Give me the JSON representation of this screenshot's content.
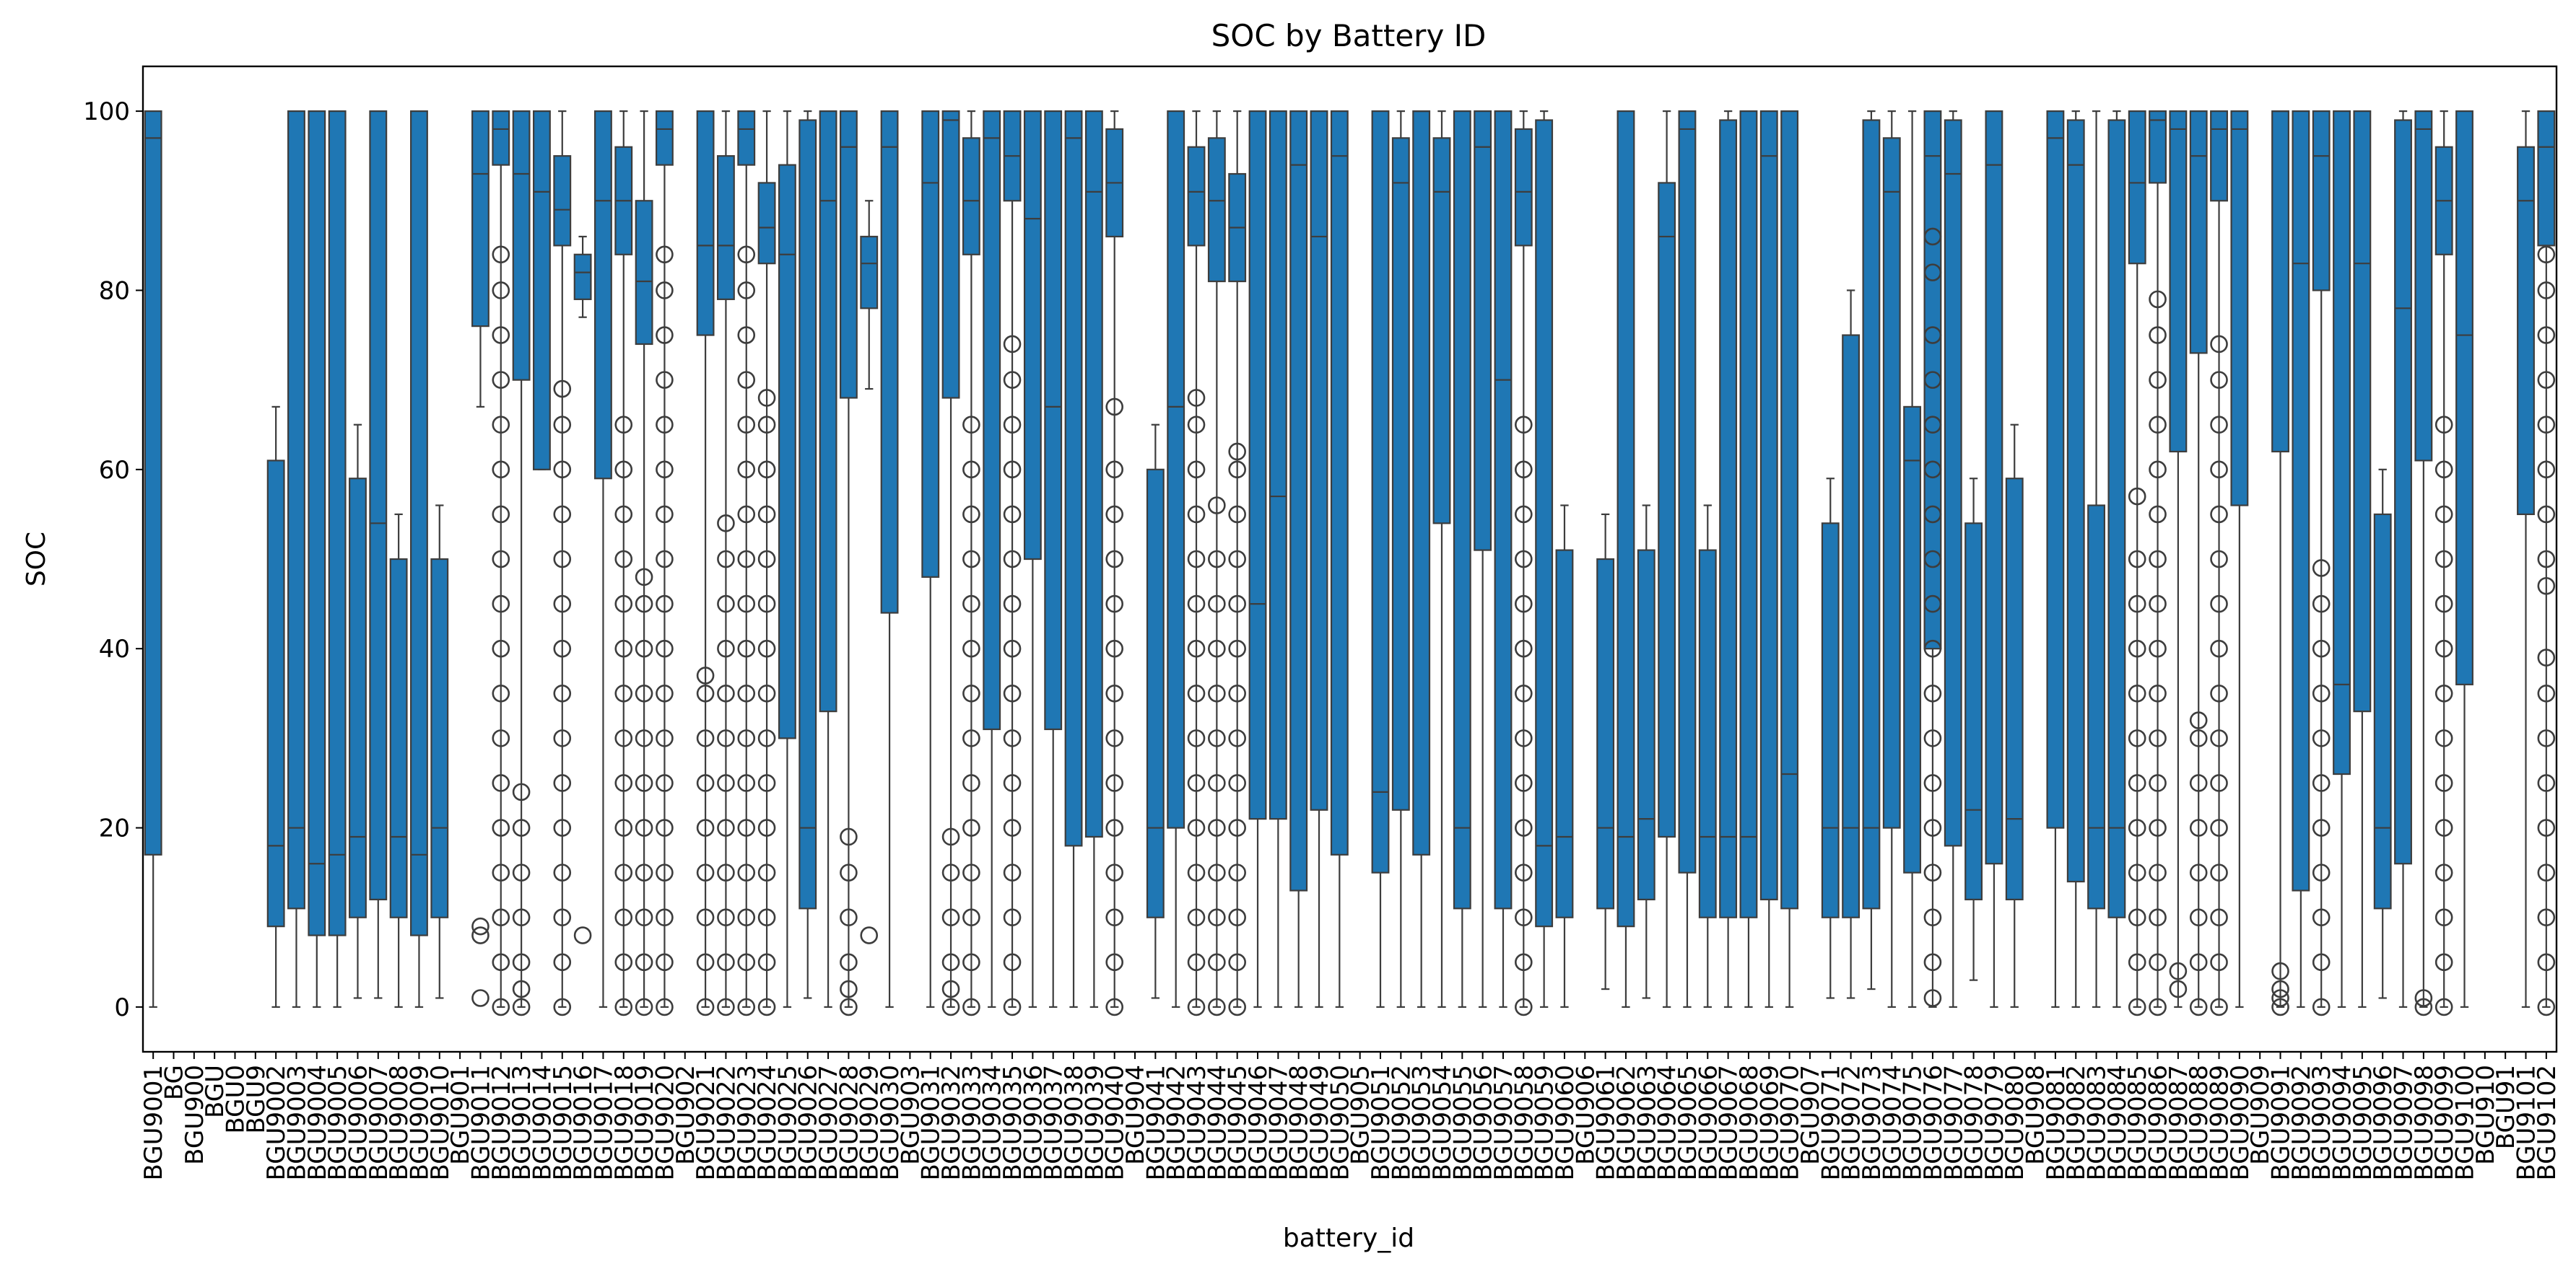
{
  "chart_data": {
    "type": "box",
    "title": "SOC by Battery ID",
    "xlabel": "battery_id",
    "ylabel": "SOC",
    "ylim": [
      -5,
      105
    ],
    "yticks": [
      0,
      20,
      40,
      60,
      80,
      100
    ],
    "grid": false,
    "legend": "none",
    "box_color": "#1f77b4",
    "line_color": "#3d3d3d",
    "categories": [
      "BGU9001",
      "BG",
      "BGU900",
      "BGU",
      "BGU0",
      "BGU9",
      "BGU9002",
      "BGU9003",
      "BGU9004",
      "BGU9005",
      "BGU9006",
      "BGU9007",
      "BGU9008",
      "BGU9009",
      "BGU9010",
      "BGU901",
      "BGU9011",
      "BGU9012",
      "BGU9013",
      "BGU9014",
      "BGU9015",
      "BGU9016",
      "BGU9017",
      "BGU9018",
      "BGU9019",
      "BGU9020",
      "BGU902",
      "BGU9021",
      "BGU9022",
      "BGU9023",
      "BGU9024",
      "BGU9025",
      "BGU9026",
      "BGU9027",
      "BGU9028",
      "BGU9029",
      "BGU9030",
      "BGU903",
      "BGU9031",
      "BGU9032",
      "BGU9033",
      "BGU9034",
      "BGU9035",
      "BGU9036",
      "BGU9037",
      "BGU9038",
      "BGU9039",
      "BGU9040",
      "BGU904",
      "BGU9041",
      "BGU9042",
      "BGU9043",
      "BGU9044",
      "BGU9045",
      "BGU9046",
      "BGU9047",
      "BGU9048",
      "BGU9049",
      "BGU9050",
      "BGU905",
      "BGU9051",
      "BGU9052",
      "BGU9053",
      "BGU9054",
      "BGU9055",
      "BGU9056",
      "BGU9057",
      "BGU9058",
      "BGU9059",
      "BGU9060",
      "BGU906",
      "BGU9061",
      "BGU9062",
      "BGU9063",
      "BGU9064",
      "BGU9065",
      "BGU9066",
      "BGU9067",
      "BGU9068",
      "BGU9069",
      "BGU9070",
      "BGU907",
      "BGU9071",
      "BGU9072",
      "BGU9073",
      "BGU9074",
      "BGU9075",
      "BGU9076",
      "BGU9077",
      "BGU9078",
      "BGU9079",
      "BGU9080",
      "BGU908",
      "BGU9081",
      "BGU9082",
      "BGU9083",
      "BGU9084",
      "BGU9085",
      "BGU9086",
      "BGU9087",
      "BGU9088",
      "BGU9089",
      "BGU9090",
      "BGU909",
      "BGU9091",
      "BGU9092",
      "BGU9093",
      "BGU9094",
      "BGU9095",
      "BGU9096",
      "BGU9097",
      "BGU9098",
      "BGU9099",
      "BGU9100",
      "BGU910",
      "BGU91",
      "BGU9101",
      "BGU9102"
    ],
    "tick_labels": [
      "BGU9001",
      "BG",
      "BGU900",
      "BGU",
      "BGU0",
      "BGU9",
      "BGU9002",
      "BGU9003",
      "BGU9004",
      "BGU9005",
      "BGU9006",
      "BGU9007",
      "BGU9008",
      "BGU9009",
      "BGU9010",
      "BGU901",
      "BGU9011",
      "BGU9012",
      "BGU9013",
      "BGU9014",
      "BGU9015",
      "BGU9016",
      "BGU9017",
      "BGU9018",
      "BGU9019",
      "BGU9020",
      "BGU902",
      "BGU9021",
      "BGU9022",
      "BGU9023",
      "BGU9024",
      "BGU9025",
      "BGU9026",
      "BGU9027",
      "BGU9028",
      "BGU9029",
      "BGU9030",
      "BGU903",
      "BGU9031",
      "BGU9032",
      "BGU9033",
      "BGU9034",
      "BGU9035",
      "BGU9036",
      "BGU9037",
      "BGU9038",
      "BGU9039",
      "BGU9040",
      "BGU904",
      "BGU9041",
      "BGU9042",
      "BGU9043",
      "BGU9044",
      "BGU9045",
      "BGU9046",
      "BGU9047",
      "BGU9048",
      "BGU9049",
      "BGU9050",
      "BGU905",
      "BGU9051",
      "BGU9052",
      "BGU9053",
      "BGU9054",
      "BGU9055",
      "BGU9056",
      "BGU9057",
      "BGU9058",
      "BGU9059",
      "BGU9060",
      "BGU906",
      "BGU9061",
      "BGU9062",
      "BGU9063",
      "BGU9064",
      "BGU9065",
      "BGU9066",
      "BGU9067",
      "BGU9068",
      "BGU9069",
      "BGU9070",
      "BGU907",
      "BGU9071",
      "BGU9072",
      "BGU9073",
      "BGU9074",
      "BGU9075",
      "BGU9076",
      "BGU9077",
      "BGU9078",
      "BGU9079",
      "BGU9080",
      "BGU908",
      "BGU9081",
      "BGU9082",
      "BGU9083",
      "BGU9084",
      "BGU9085",
      "BGU9086",
      "BGU9087",
      "BGU9088",
      "BGU9089",
      "BGU9090",
      "BGU909",
      "BGU9091",
      "BGU9092",
      "BGU9093",
      "BGU9094",
      "BGU9095",
      "BGU9096",
      "BGU9097",
      "BGU9098",
      "BGU9099",
      "BGU9100",
      "BGU910",
      "BGU91",
      "BGU9101",
      "BGU9102"
    ],
    "boxes": [
      [
        0,
        17,
        97,
        100,
        100,
        []
      ],
      null,
      null,
      null,
      null,
      null,
      [
        0,
        9,
        18,
        61,
        67,
        []
      ],
      [
        0,
        11,
        20,
        100,
        100,
        []
      ],
      [
        0,
        8,
        16,
        100,
        100,
        []
      ],
      [
        0,
        8,
        17,
        100,
        100,
        []
      ],
      [
        1,
        10,
        19,
        59,
        65,
        []
      ],
      [
        1,
        12,
        54,
        100,
        100,
        []
      ],
      [
        0,
        10,
        19,
        50,
        55,
        []
      ],
      [
        0,
        8,
        17,
        100,
        100,
        []
      ],
      [
        1,
        10,
        20,
        50,
        56,
        []
      ],
      null,
      [
        67,
        76,
        93,
        100,
        100,
        [
          9,
          8,
          1
        ]
      ],
      [
        0,
        94,
        98,
        100,
        100,
        [
          84,
          80,
          75,
          70,
          65,
          60,
          55,
          50,
          45,
          40,
          35,
          30,
          25,
          20,
          15,
          10,
          5,
          0
        ]
      ],
      [
        0,
        70,
        93,
        100,
        100,
        [
          24,
          20,
          15,
          10,
          5,
          2,
          0
        ]
      ],
      [
        60,
        60,
        91,
        100,
        100,
        []
      ],
      [
        0,
        85,
        89,
        95,
        100,
        [
          69,
          65,
          60,
          55,
          50,
          45,
          40,
          35,
          30,
          25,
          20,
          15,
          10,
          5,
          0
        ]
      ],
      [
        77,
        79,
        82,
        84,
        86,
        [
          8
        ]
      ],
      [
        0,
        59,
        90,
        100,
        100,
        []
      ],
      [
        0,
        84,
        90,
        96,
        100,
        [
          65,
          60,
          55,
          50,
          45,
          40,
          35,
          30,
          25,
          20,
          15,
          10,
          5,
          0
        ]
      ],
      [
        0,
        74,
        81,
        90,
        100,
        [
          48,
          45,
          40,
          35,
          30,
          25,
          20,
          15,
          10,
          5,
          0
        ]
      ],
      [
        0,
        94,
        98,
        100,
        100,
        [
          84,
          80,
          75,
          70,
          65,
          60,
          55,
          50,
          45,
          40,
          35,
          30,
          25,
          20,
          15,
          10,
          5,
          0
        ]
      ],
      null,
      [
        0,
        75,
        85,
        100,
        100,
        [
          37,
          35,
          30,
          25,
          20,
          15,
          10,
          5,
          0
        ]
      ],
      [
        0,
        79,
        85,
        95,
        100,
        [
          54,
          50,
          45,
          40,
          35,
          30,
          25,
          20,
          15,
          10,
          5,
          0
        ]
      ],
      [
        0,
        94,
        98,
        100,
        100,
        [
          84,
          80,
          75,
          70,
          65,
          60,
          55,
          50,
          45,
          40,
          35,
          30,
          25,
          20,
          15,
          10,
          5,
          0
        ]
      ],
      [
        0,
        83,
        87,
        92,
        100,
        [
          68,
          65,
          60,
          55,
          50,
          45,
          40,
          35,
          30,
          25,
          20,
          15,
          10,
          5,
          0
        ]
      ],
      [
        0,
        30,
        84,
        94,
        100,
        []
      ],
      [
        1,
        11,
        20,
        99,
        100,
        []
      ],
      [
        0,
        33,
        90,
        100,
        100,
        []
      ],
      [
        0,
        68,
        96,
        100,
        100,
        [
          19,
          15,
          10,
          5,
          2,
          0
        ]
      ],
      [
        69,
        78,
        83,
        86,
        90,
        [
          8
        ]
      ],
      [
        0,
        44,
        96,
        100,
        100,
        []
      ],
      null,
      [
        0,
        48,
        92,
        100,
        100,
        []
      ],
      [
        0,
        68,
        99,
        100,
        100,
        [
          19,
          15,
          10,
          5,
          2,
          0
        ]
      ],
      [
        0,
        84,
        90,
        97,
        100,
        [
          65,
          60,
          55,
          50,
          45,
          40,
          35,
          30,
          25,
          20,
          15,
          10,
          5,
          0
        ]
      ],
      [
        0,
        31,
        97,
        100,
        100,
        []
      ],
      [
        0,
        90,
        95,
        100,
        100,
        [
          74,
          70,
          65,
          60,
          55,
          50,
          45,
          40,
          35,
          30,
          25,
          20,
          15,
          10,
          5,
          0
        ]
      ],
      [
        0,
        50,
        88,
        100,
        100,
        []
      ],
      [
        0,
        31,
        67,
        100,
        100,
        []
      ],
      [
        0,
        18,
        97,
        100,
        100,
        []
      ],
      [
        0,
        19,
        91,
        100,
        100,
        []
      ],
      [
        0,
        86,
        92,
        98,
        100,
        [
          67,
          60,
          55,
          50,
          45,
          40,
          35,
          30,
          25,
          20,
          15,
          10,
          5,
          0
        ]
      ],
      null,
      [
        1,
        10,
        20,
        60,
        65,
        []
      ],
      [
        0,
        20,
        67,
        100,
        100,
        []
      ],
      [
        0,
        85,
        91,
        96,
        100,
        [
          68,
          65,
          60,
          55,
          50,
          45,
          40,
          35,
          30,
          25,
          20,
          15,
          10,
          5,
          0
        ]
      ],
      [
        0,
        81,
        90,
        97,
        100,
        [
          56,
          50,
          45,
          40,
          35,
          30,
          25,
          20,
          15,
          10,
          5,
          0
        ]
      ],
      [
        0,
        81,
        87,
        93,
        100,
        [
          62,
          60,
          55,
          50,
          45,
          40,
          35,
          30,
          25,
          20,
          15,
          10,
          5,
          0
        ]
      ],
      [
        0,
        21,
        45,
        100,
        100,
        []
      ],
      [
        0,
        21,
        57,
        100,
        100,
        []
      ],
      [
        0,
        13,
        94,
        100,
        100,
        []
      ],
      [
        0,
        22,
        86,
        100,
        100,
        []
      ],
      [
        0,
        17,
        95,
        100,
        100,
        []
      ],
      null,
      [
        0,
        15,
        24,
        100,
        100,
        []
      ],
      [
        0,
        22,
        92,
        97,
        100,
        []
      ],
      [
        0,
        17,
        100,
        100,
        100,
        []
      ],
      [
        0,
        54,
        91,
        97,
        100,
        []
      ],
      [
        0,
        11,
        20,
        100,
        100,
        []
      ],
      [
        0,
        51,
        96,
        100,
        100,
        []
      ],
      [
        0,
        11,
        70,
        100,
        100,
        []
      ],
      [
        0,
        85,
        91,
        98,
        100,
        [
          65,
          60,
          55,
          50,
          45,
          40,
          35,
          30,
          25,
          20,
          15,
          10,
          5,
          0
        ]
      ],
      [
        0,
        9,
        18,
        99,
        100,
        []
      ],
      [
        0,
        10,
        19,
        51,
        56,
        []
      ],
      null,
      [
        2,
        11,
        20,
        50,
        55,
        []
      ],
      [
        0,
        9,
        19,
        100,
        100,
        []
      ],
      [
        1,
        12,
        21,
        51,
        56,
        []
      ],
      [
        0,
        19,
        86,
        92,
        100,
        []
      ],
      [
        0,
        15,
        98,
        100,
        100,
        []
      ],
      [
        0,
        10,
        19,
        51,
        56,
        []
      ],
      [
        0,
        10,
        19,
        99,
        100,
        []
      ],
      [
        0,
        10,
        19,
        100,
        100,
        []
      ],
      [
        0,
        12,
        95,
        100,
        100,
        []
      ],
      [
        0,
        11,
        26,
        100,
        100,
        []
      ],
      null,
      [
        1,
        10,
        20,
        54,
        59,
        []
      ],
      [
        1,
        10,
        20,
        75,
        80,
        []
      ],
      [
        2,
        11,
        20,
        99,
        100,
        []
      ],
      [
        0,
        20,
        91,
        97,
        100,
        []
      ],
      [
        0,
        15,
        61,
        67,
        100,
        []
      ],
      [
        0,
        40,
        95,
        100,
        100,
        [
          86,
          82,
          75,
          70,
          65,
          60,
          55,
          50,
          45,
          40,
          35,
          30,
          25,
          20,
          15,
          10,
          5,
          1
        ]
      ],
      [
        0,
        18,
        93,
        99,
        100,
        []
      ],
      [
        3,
        12,
        22,
        54,
        59,
        []
      ],
      [
        0,
        16,
        94,
        100,
        100,
        []
      ],
      [
        0,
        12,
        21,
        59,
        65,
        []
      ],
      null,
      [
        0,
        20,
        97,
        100,
        100,
        []
      ],
      [
        0,
        14,
        94,
        99,
        100,
        []
      ],
      [
        0,
        11,
        20,
        56,
        100,
        []
      ],
      [
        0,
        10,
        20,
        99,
        100,
        []
      ],
      [
        0,
        83,
        92,
        100,
        100,
        [
          57,
          50,
          45,
          40,
          35,
          30,
          25,
          20,
          15,
          10,
          5,
          0
        ]
      ],
      [
        0,
        92,
        99,
        100,
        100,
        [
          79,
          75,
          70,
          65,
          60,
          55,
          50,
          45,
          40,
          35,
          30,
          25,
          20,
          15,
          10,
          5,
          0
        ]
      ],
      [
        0,
        62,
        98,
        100,
        100,
        [
          4,
          2
        ]
      ],
      [
        0,
        73,
        95,
        100,
        100,
        [
          32,
          30,
          25,
          20,
          15,
          10,
          5,
          0
        ]
      ],
      [
        0,
        90,
        98,
        100,
        100,
        [
          74,
          70,
          65,
          60,
          55,
          50,
          45,
          40,
          35,
          30,
          25,
          20,
          15,
          10,
          5,
          0
        ]
      ],
      [
        0,
        56,
        98,
        100,
        100,
        []
      ],
      null,
      [
        0,
        62,
        100,
        100,
        100,
        [
          4,
          2,
          1,
          0
        ]
      ],
      [
        0,
        13,
        83,
        100,
        100,
        []
      ],
      [
        0,
        80,
        95,
        100,
        100,
        [
          49,
          45,
          40,
          35,
          30,
          25,
          20,
          15,
          10,
          5,
          0
        ]
      ],
      [
        0,
        26,
        36,
        100,
        100,
        []
      ],
      [
        0,
        33,
        83,
        100,
        100,
        []
      ],
      [
        1,
        11,
        20,
        55,
        60,
        []
      ],
      [
        0,
        16,
        78,
        99,
        100,
        []
      ],
      [
        0,
        61,
        98,
        100,
        100,
        [
          1,
          0
        ]
      ],
      [
        0,
        84,
        90,
        96,
        100,
        [
          65,
          60,
          55,
          50,
          45,
          40,
          35,
          30,
          25,
          20,
          15,
          10,
          5,
          0
        ]
      ],
      [
        0,
        36,
        75,
        100,
        100,
        []
      ],
      null,
      null,
      [
        0,
        55,
        90,
        96,
        100,
        []
      ],
      [
        0,
        85,
        96,
        100,
        100,
        [
          84,
          80,
          75,
          70,
          65,
          60,
          55,
          50,
          47,
          39,
          35,
          30,
          25,
          20,
          15,
          10,
          5,
          0
        ]
      ]
    ]
  }
}
